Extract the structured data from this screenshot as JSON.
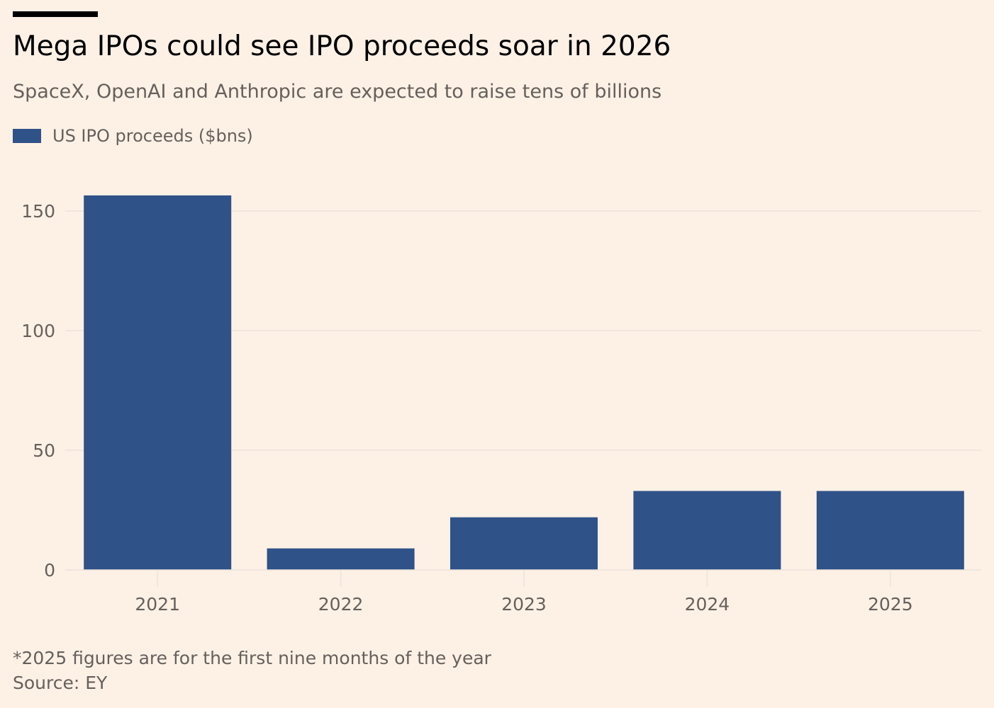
{
  "header": {
    "title": "Mega IPOs could see IPO proceeds soar in 2026",
    "subtitle": "SpaceX, OpenAI and Anthropic are expected to raise tens of billions"
  },
  "legend": {
    "label": "US IPO proceeds ($bns)"
  },
  "footer": {
    "note": "*2025 figures are for the first nine months of the year",
    "source": "Source: EY"
  },
  "colors": {
    "bar": "#2f5288",
    "gridline": "#ece3da",
    "background": "#fdf1e6"
  },
  "chart_data": {
    "type": "bar",
    "title": "Mega IPOs could see IPO proceeds soar in 2026",
    "subtitle": "SpaceX, OpenAI and Anthropic are expected to raise tens of billions",
    "categories": [
      "2021",
      "2022",
      "2023",
      "2024",
      "2025"
    ],
    "series": [
      {
        "name": "US IPO proceeds ($bns)",
        "values": [
          156.5,
          9,
          22,
          33,
          33
        ]
      }
    ],
    "ylim": [
      0,
      150
    ],
    "yticks": [
      0,
      50,
      100,
      150
    ],
    "xlabel": "",
    "ylabel": "",
    "grid": true,
    "legend_position": "top-left"
  }
}
